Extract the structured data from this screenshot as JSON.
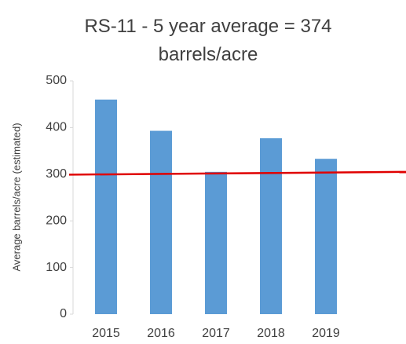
{
  "chart_data": {
    "type": "bar",
    "title": "RS-11 - 5 year average = 374 barrels/acre",
    "y_label": "Average barrels/acre (estimated)",
    "categories": [
      "2015",
      "2016",
      "2017",
      "2018",
      "2019"
    ],
    "values": [
      460,
      393,
      305,
      377,
      333
    ],
    "color": "#5b9bd5",
    "ylim": [
      0,
      500
    ],
    "yticks": [
      0,
      100,
      200,
      300,
      400,
      500
    ],
    "reference_line": {
      "color": "#e00000",
      "values": [
        299,
        305
      ]
    }
  }
}
